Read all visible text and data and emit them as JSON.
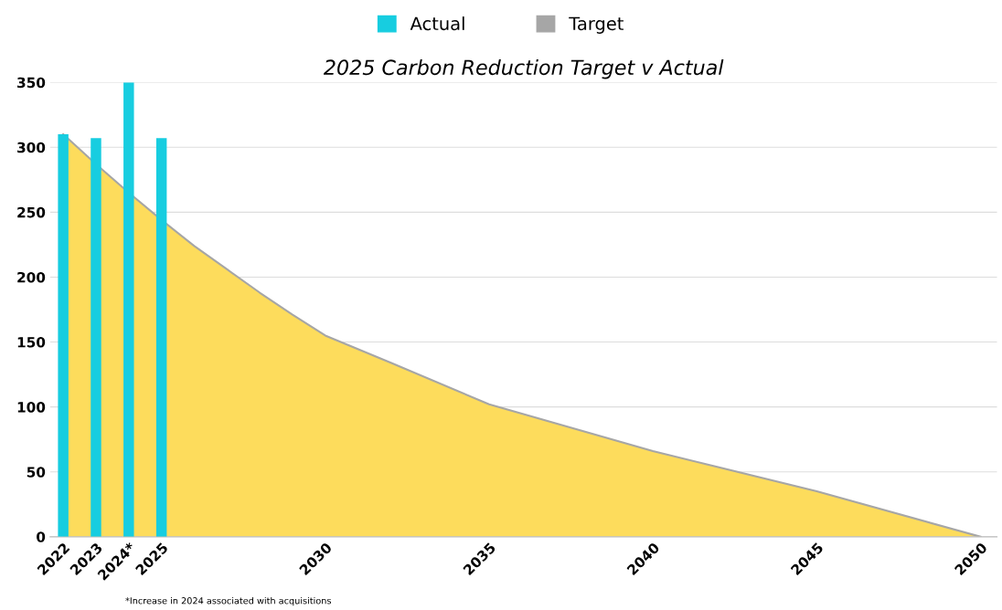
{
  "chart_data": {
    "type": "area",
    "title": "2025 Carbon Reduction Target v Actual",
    "series": [
      {
        "name": "Actual",
        "type": "bar",
        "color": "#17cde0",
        "x": [
          2022,
          2023,
          2024,
          2025
        ],
        "values": [
          310,
          307,
          350,
          307
        ]
      },
      {
        "name": "Target",
        "color": "#a6a6a6",
        "x": [
          2022,
          2023,
          2024,
          2025,
          2026,
          2027,
          2028,
          2029,
          2030,
          2032,
          2035,
          2040,
          2045,
          2050
        ],
        "values": [
          310,
          287,
          265,
          244,
          224,
          206,
          188,
          171,
          155,
          134,
          102,
          66,
          35,
          0
        ]
      }
    ],
    "xlim": [
      2021.6,
      2050.5
    ],
    "xticks": [
      2022,
      2023,
      {
        "value": 2024,
        "label": "2024*"
      },
      2025,
      2030,
      2035,
      2040,
      2045,
      2050
    ],
    "ylim": [
      0,
      350
    ],
    "yticks": [
      0,
      50,
      100,
      150,
      200,
      250,
      300,
      350
    ],
    "grid": "y",
    "legend": "top",
    "annotations": [
      "*Increase in 2024 associated with acquisitions"
    ]
  }
}
